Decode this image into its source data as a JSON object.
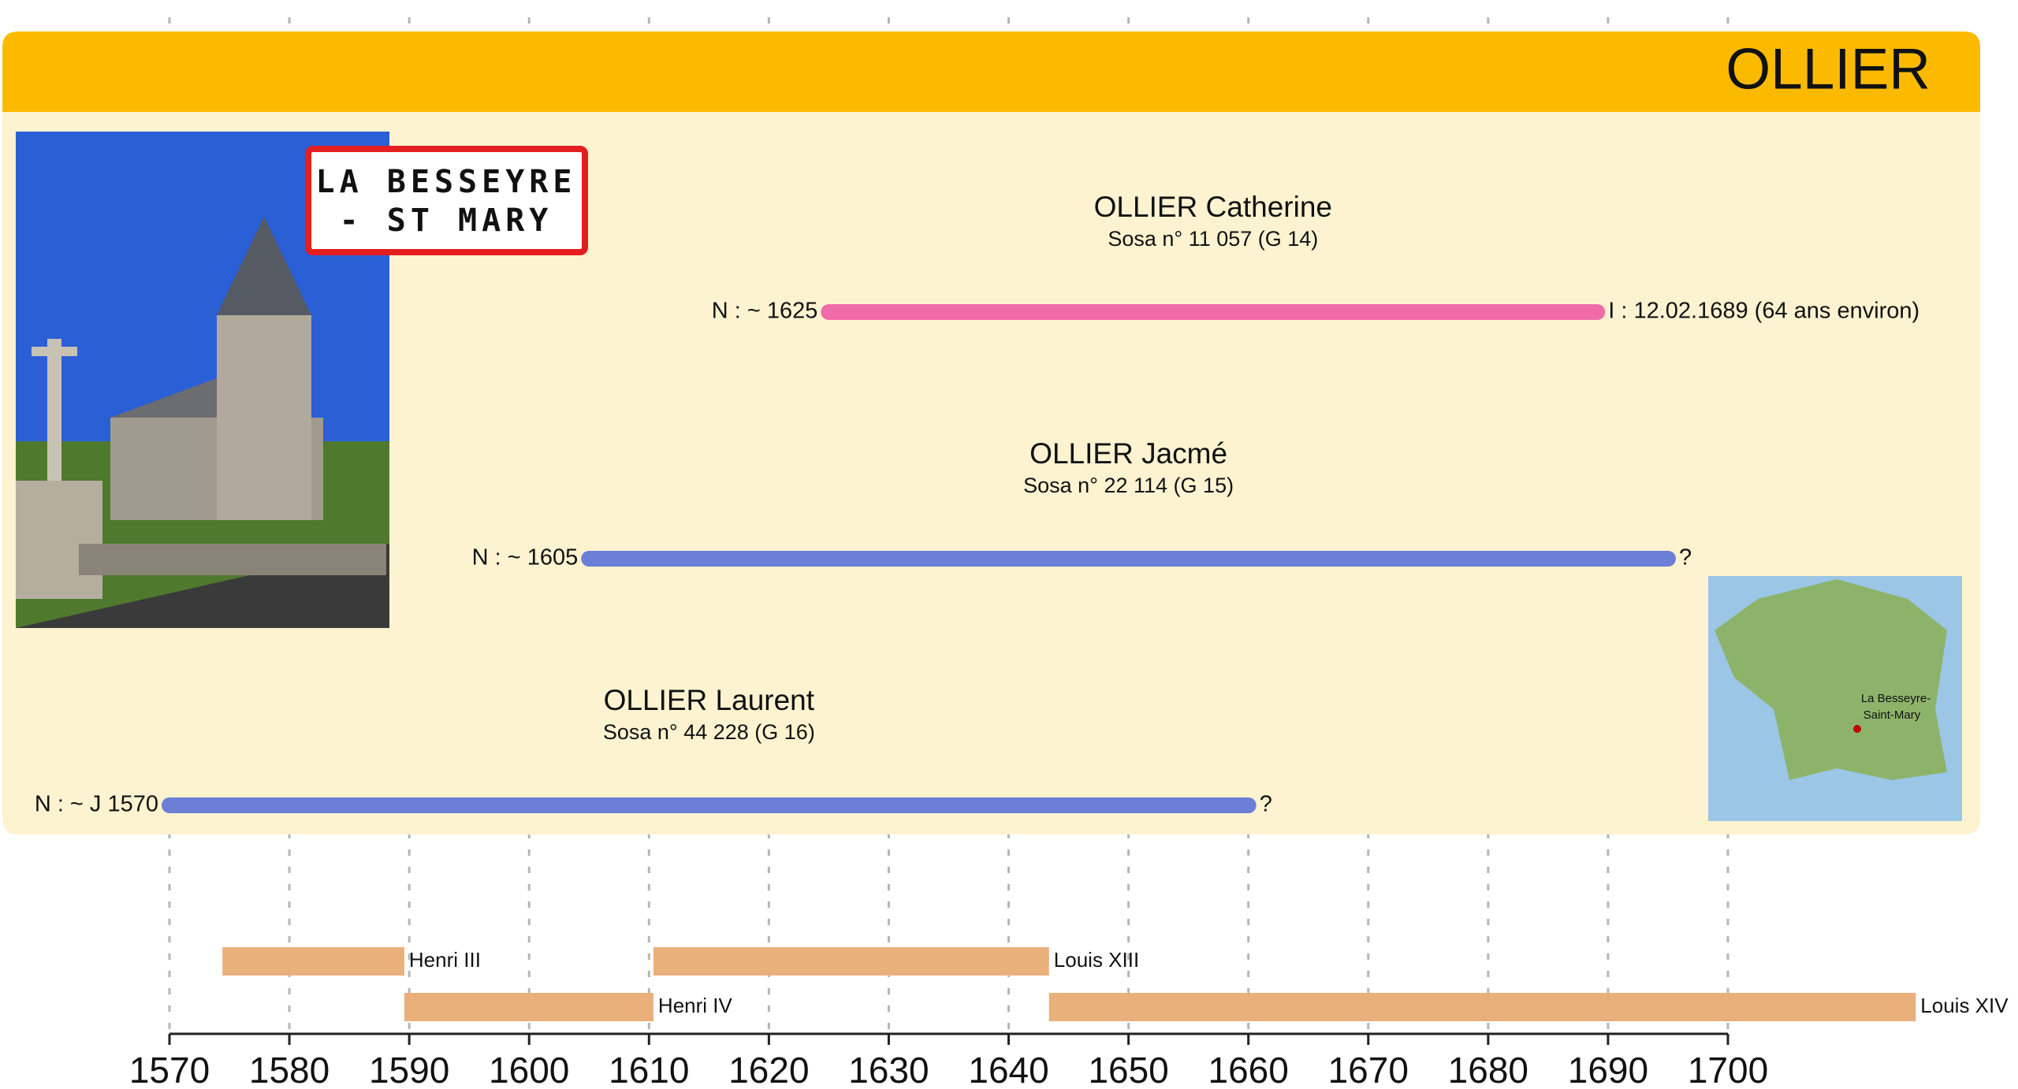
{
  "chart_data": {
    "type": "timeline",
    "title": "OLLIER",
    "sign_lines": [
      "LA BESSEYRE",
      "- ST MARY"
    ],
    "map_label": [
      "La Besseyre-",
      "Saint-Mary"
    ],
    "persons": [
      {
        "name": "OLLIER Catherine",
        "sosa": "Sosa n° 11 057 (G 14)",
        "start_label": "N : ~ 1625",
        "end_label": "I : 12.02.1689 (64 ans environ)",
        "start": 1625,
        "end": 1689.1,
        "color": "#f06ba8"
      },
      {
        "name": "OLLIER Jacmé",
        "sosa": "Sosa n° 22 114 (G 15)",
        "start_label": "N : ~ 1605",
        "end_label": "?",
        "start": 1605,
        "end": 1695,
        "color": "#6b7fd7"
      },
      {
        "name": "OLLIER Laurent",
        "sosa": "Sosa n° 44 228 (G 16)",
        "start_label": "N : ~ J 1570",
        "end_label": "?",
        "start": 1570,
        "end": 1660,
        "color": "#6b7fd7"
      }
    ],
    "reign_color": "#e9b07b",
    "reigns": [
      {
        "name": "Henri III",
        "start": 1574.42,
        "end": 1589.59
      },
      {
        "name": "Henri IV",
        "start": 1589.59,
        "end": 1610.37
      },
      {
        "name": "Louis XIII",
        "start": 1610.37,
        "end": 1643.37
      },
      {
        "name": "Louis XIV",
        "start": 1643.37,
        "end": 1715.67
      }
    ],
    "xlim": [
      1570,
      1700
    ],
    "xticks": [
      1570,
      1580,
      1590,
      1600,
      1610,
      1620,
      1630,
      1640,
      1650,
      1660,
      1670,
      1680,
      1690,
      1700
    ],
    "grid": true
  }
}
